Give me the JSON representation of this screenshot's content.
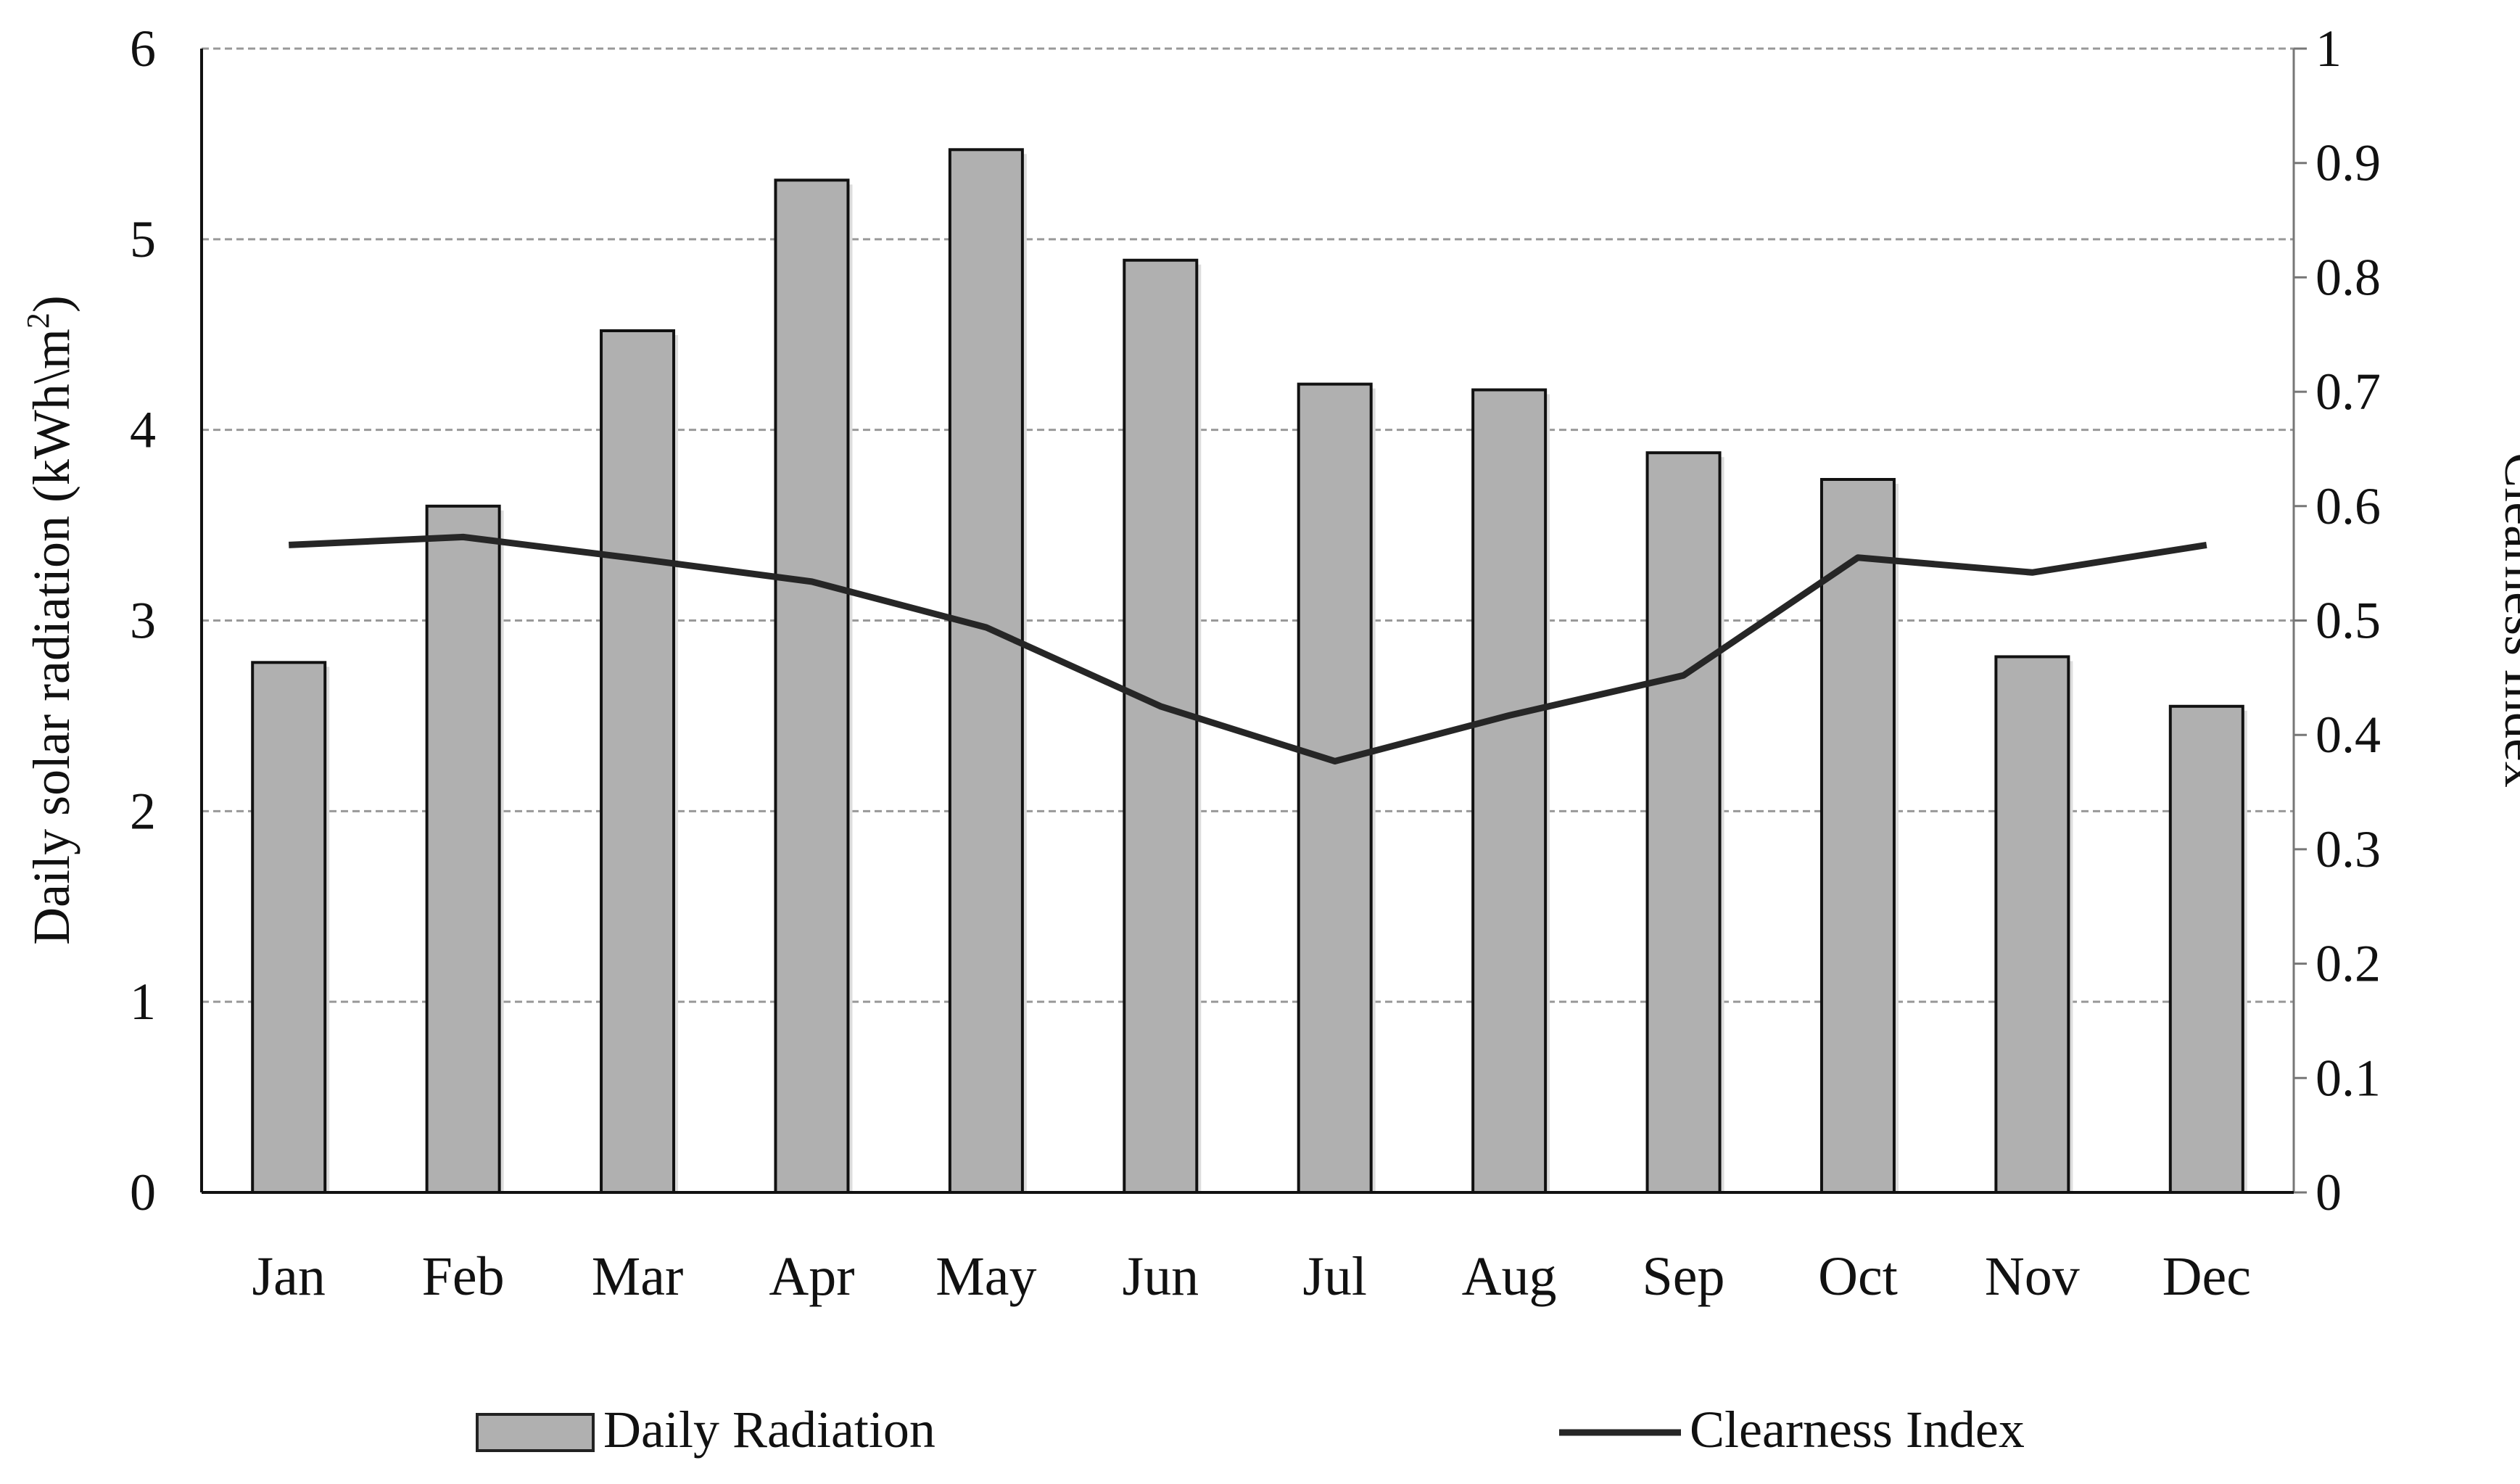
{
  "chart_data": {
    "type": "bar+line",
    "categories": [
      "Jan",
      "Feb",
      "Mar",
      "Apr",
      "May",
      "Jun",
      "Jul",
      "Aug",
      "Sep",
      "Oct",
      "Nov",
      "Dec"
    ],
    "series": [
      {
        "name": "Daily Radiation",
        "type": "bar",
        "axis": "left",
        "color": "#b0b0b0",
        "values": [
          2.78,
          3.6,
          4.52,
          5.31,
          5.47,
          4.89,
          4.24,
          4.21,
          3.88,
          3.74,
          2.81,
          2.55
        ]
      },
      {
        "name": "Clearness Index",
        "type": "line",
        "axis": "right",
        "color": "#262626",
        "values": [
          0.566,
          0.573,
          0.554,
          0.534,
          0.494,
          0.425,
          0.377,
          0.417,
          0.452,
          0.555,
          0.542,
          0.566
        ]
      }
    ],
    "ylabel": "Daily solar radiation (kWh\\m²)",
    "ylabel_parts": {
      "main": "Daily solar radiation (kWh\\m",
      "sup": "2",
      "end": ")"
    },
    "y2label": "Clearness Index",
    "ylim": [
      0,
      6
    ],
    "y2lim": [
      0,
      1
    ],
    "yticks": [
      "0",
      "1",
      "2",
      "3",
      "4",
      "5",
      "6"
    ],
    "y2ticks": [
      "0",
      "0.1",
      "0.2",
      "0.3",
      "0.4",
      "0.5",
      "0.6",
      "0.7",
      "0.8",
      "0.9",
      "1"
    ],
    "grid": "dashed horizontal",
    "legend_placement": "bottom"
  }
}
